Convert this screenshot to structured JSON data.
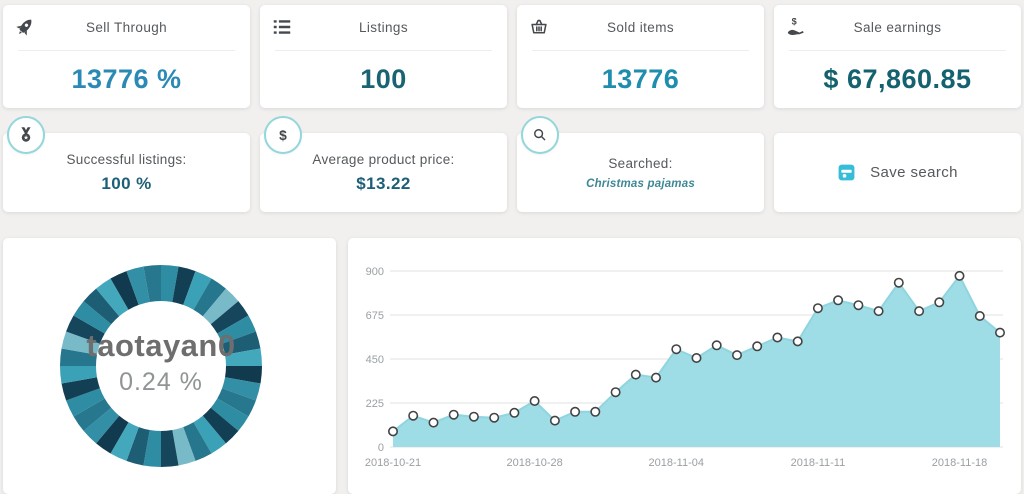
{
  "page": {
    "background": "#f1f0ef"
  },
  "stat_cards": [
    {
      "label": "Sell Through",
      "value": "13776 %",
      "icon": "rocket-icon",
      "value_color": "#2b8ab5"
    },
    {
      "label": "Listings",
      "value": "100",
      "icon": "list-icon",
      "value_color": "#1a6372"
    },
    {
      "label": "Sold items",
      "value": "13776",
      "icon": "basket-icon",
      "value_color": "#1f8dad"
    },
    {
      "label": "Sale earnings",
      "value": "$ 67,860.85",
      "icon": "money-hand-icon",
      "value_color": "#14616f"
    }
  ],
  "summary_cards": [
    {
      "label": "Successful listings:",
      "value": "100 %",
      "badge_icon": "medal-icon",
      "value_color": "#1d5f78"
    },
    {
      "label": "Average product price:",
      "value": "$13.22",
      "badge_icon": "dollar-icon",
      "value_color": "#1d5f78"
    },
    {
      "label": "Searched:",
      "value": "Christmas pajamas",
      "badge_icon": "search-icon",
      "value_color": "#3e8896"
    },
    {
      "button_label": "Save search",
      "button_icon": "save-icon",
      "icon_color": "#38bdd9"
    }
  ],
  "chart_data": [
    {
      "type": "donut",
      "center_label": "taotayan0",
      "center_value": "0.24 %",
      "segments": 36,
      "palette": [
        "#2e8da3",
        "#133f54",
        "#3aa1b6",
        "#26768d",
        "#79bac8",
        "#16465c",
        "#2e8da3",
        "#1e5e75",
        "#44a8bc",
        "#123a4e",
        "#338fa5",
        "#27778e"
      ]
    },
    {
      "type": "area",
      "title": "",
      "xlabel": "",
      "ylabel": "",
      "x": [
        "2018-10-21",
        "2018-10-22",
        "2018-10-23",
        "2018-10-24",
        "2018-10-25",
        "2018-10-26",
        "2018-10-27",
        "2018-10-28",
        "2018-10-29",
        "2018-10-30",
        "2018-10-31",
        "2018-11-01",
        "2018-11-02",
        "2018-11-03",
        "2018-11-04",
        "2018-11-05",
        "2018-11-06",
        "2018-11-07",
        "2018-11-08",
        "2018-11-09",
        "2018-11-10",
        "2018-11-11",
        "2018-11-12",
        "2018-11-13",
        "2018-11-14",
        "2018-11-15",
        "2018-11-16",
        "2018-11-17",
        "2018-11-18",
        "2018-11-19",
        "2018-11-20"
      ],
      "values": [
        80,
        160,
        125,
        165,
        155,
        150,
        175,
        235,
        135,
        180,
        180,
        280,
        370,
        355,
        500,
        455,
        520,
        470,
        515,
        560,
        540,
        710,
        750,
        725,
        695,
        840,
        695,
        740,
        875,
        670,
        585
      ],
      "ylim": [
        0,
        900
      ],
      "yticks": [
        0,
        225,
        450,
        675,
        900
      ],
      "tick_indices": [
        0,
        7,
        14,
        21,
        28
      ],
      "tick_labels": [
        "2018-10-21",
        "2018-10-28",
        "2018-11-04",
        "2018-11-11",
        "2018-11-18"
      ],
      "grid": true,
      "legend": "none",
      "fill": "#9edce6",
      "line": "#8fd5e0",
      "marker_fill": "#ffffff",
      "marker_stroke": "#434343",
      "grid_color": "#e2e2e2",
      "tick_color": "#9aa0a4"
    }
  ]
}
